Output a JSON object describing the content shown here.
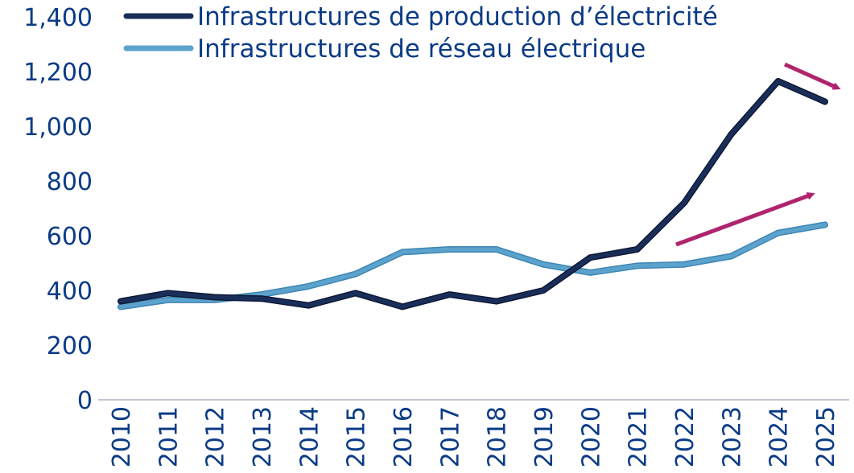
{
  "chart_data": {
    "type": "line",
    "x": [
      "2010",
      "2011",
      "2012",
      "2013",
      "2014",
      "2015",
      "2016",
      "2017",
      "2018",
      "2019",
      "2020",
      "2021",
      "2022",
      "2023",
      "2024",
      "2025"
    ],
    "series": [
      {
        "name": "Infrastructures de production d’électricité",
        "color": "#1a2e5a",
        "values": [
          360,
          390,
          375,
          370,
          345,
          390,
          340,
          385,
          360,
          400,
          520,
          550,
          720,
          970,
          1165,
          1090
        ]
      },
      {
        "name": "Infrastructures de réseau électrique",
        "color": "#5ba3cc",
        "values": [
          340,
          365,
          365,
          385,
          415,
          460,
          540,
          550,
          550,
          495,
          465,
          490,
          495,
          525,
          610,
          640
        ]
      }
    ],
    "ylim": [
      0,
      1400
    ],
    "yticks": [
      "0",
      "200",
      "400",
      "600",
      "800",
      "1,000",
      "1,200",
      "1,400"
    ],
    "legend_position": "top",
    "annotations": [
      {
        "type": "arrow",
        "color": "#b0246e",
        "description": "downward trend arrow near 2024-2025 production"
      },
      {
        "type": "arrow",
        "color": "#b0246e",
        "description": "upward trend arrow over 2022-2025 network"
      }
    ],
    "grid": false
  }
}
